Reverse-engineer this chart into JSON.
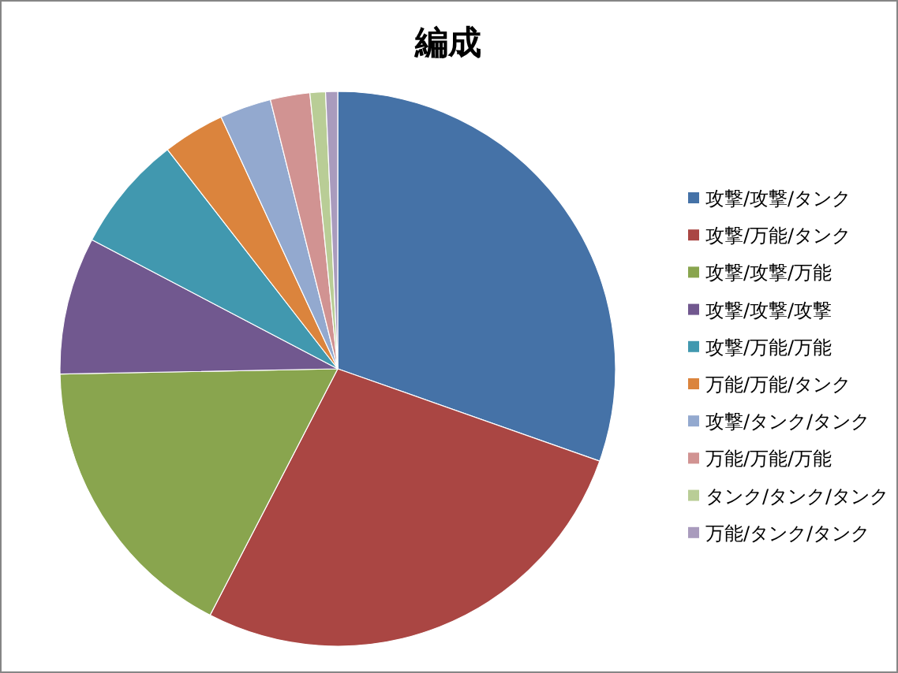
{
  "chart_data": {
    "type": "pie",
    "title": "編成",
    "categories": [
      "攻撃/攻撃/タンク",
      "攻撃/万能/タンク",
      "攻撃/攻撃/万能",
      "攻撃/攻撃/攻撃",
      "攻撃/万能/万能",
      "万能/万能/タンク",
      "攻撃/タンク/タンク",
      "万能/万能/万能",
      "タンク/タンク/タンク",
      "万能/タンク/タンク"
    ],
    "values": [
      30.4,
      27.2,
      17.1,
      8.0,
      6.8,
      3.6,
      3.0,
      2.3,
      0.9,
      0.7
    ],
    "colors": [
      "#4572a7",
      "#aa4643",
      "#89a54e",
      "#71588f",
      "#4198af",
      "#db843d",
      "#93a9cf",
      "#d19392",
      "#b9cd96",
      "#a99bbd"
    ],
    "legend": "right"
  }
}
